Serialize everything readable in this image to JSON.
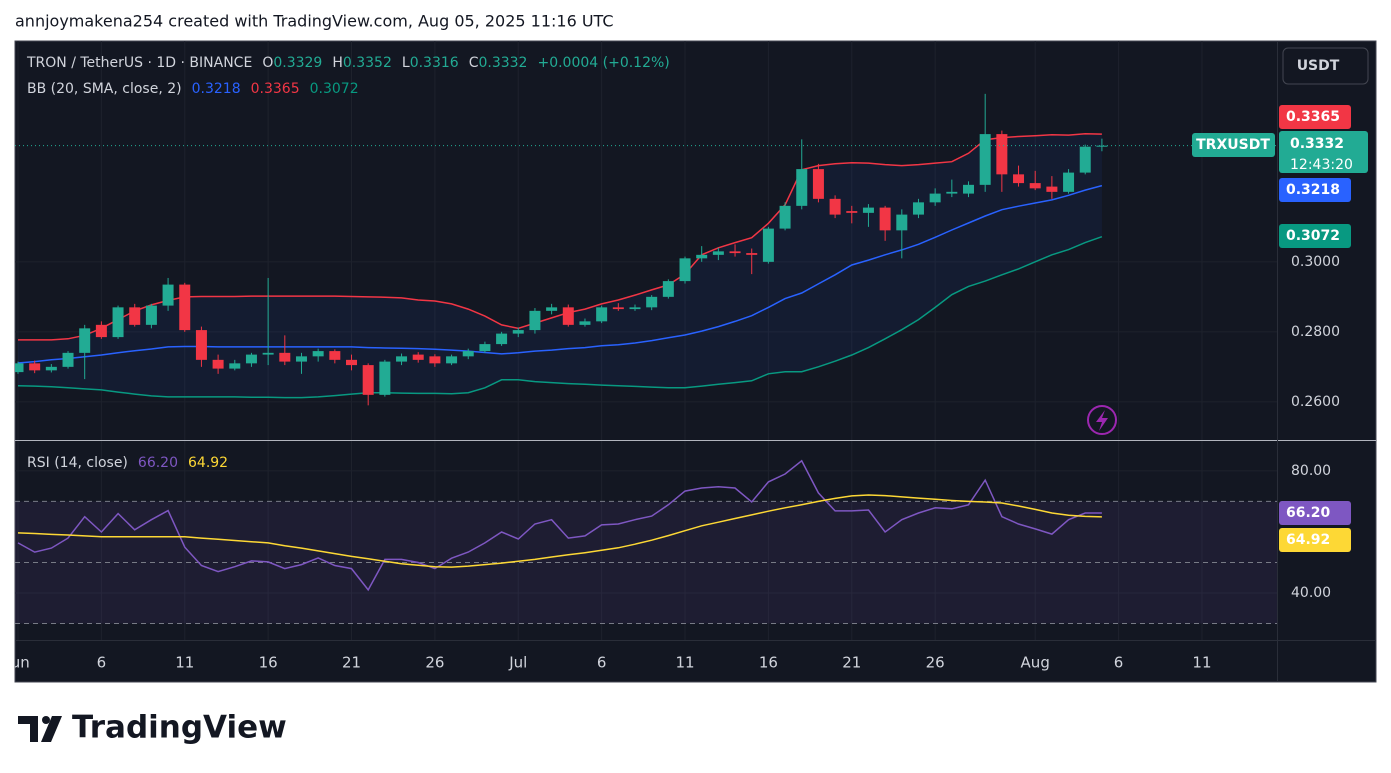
{
  "page": {
    "header": "annjoymakena254 created with TradingView.com, Aug 05, 2025 11:16 UTC",
    "brand": "TradingView"
  },
  "chart_data": [
    {
      "type": "candlestick",
      "title": "TRON / TetherUS · 1D · BINANCE",
      "ohlc_legend": [
        {
          "key": "O",
          "text": "0.3329"
        },
        {
          "key": "H",
          "text": "0.3352"
        },
        {
          "key": "L",
          "text": "0.3316"
        },
        {
          "key": "C",
          "text": "0.3332"
        }
      ],
      "change": "+0.0004 (+0.12%)",
      "symbol": "TRXUSDT",
      "currency": "USDT",
      "last_price_label": "0.3332",
      "countdown": "12:43:20",
      "up_color": "#22ab94",
      "down_color": "#f23645",
      "x": [
        "2025-06-01",
        "2025-06-02",
        "2025-06-03",
        "2025-06-04",
        "2025-06-05",
        "2025-06-06",
        "2025-06-07",
        "2025-06-08",
        "2025-06-09",
        "2025-06-10",
        "2025-06-11",
        "2025-06-12",
        "2025-06-13",
        "2025-06-14",
        "2025-06-15",
        "2025-06-16",
        "2025-06-17",
        "2025-06-18",
        "2025-06-19",
        "2025-06-20",
        "2025-06-21",
        "2025-06-22",
        "2025-06-23",
        "2025-06-24",
        "2025-06-25",
        "2025-06-26",
        "2025-06-27",
        "2025-06-28",
        "2025-06-29",
        "2025-06-30",
        "2025-07-01",
        "2025-07-02",
        "2025-07-03",
        "2025-07-04",
        "2025-07-05",
        "2025-07-06",
        "2025-07-07",
        "2025-07-08",
        "2025-07-09",
        "2025-07-10",
        "2025-07-11",
        "2025-07-12",
        "2025-07-13",
        "2025-07-14",
        "2025-07-15",
        "2025-07-16",
        "2025-07-17",
        "2025-07-18",
        "2025-07-19",
        "2025-07-20",
        "2025-07-21",
        "2025-07-22",
        "2025-07-23",
        "2025-07-24",
        "2025-07-25",
        "2025-07-26",
        "2025-07-27",
        "2025-07-28",
        "2025-07-29",
        "2025-07-30",
        "2025-07-31",
        "2025-08-01",
        "2025-08-02",
        "2025-08-03",
        "2025-08-04",
        "2025-08-05"
      ],
      "open": [
        0.2685,
        0.271,
        0.269,
        0.27,
        0.274,
        0.282,
        0.2785,
        0.287,
        0.282,
        0.2875,
        0.2935,
        0.2805,
        0.272,
        0.2695,
        0.271,
        0.2735,
        0.274,
        0.2715,
        0.273,
        0.2745,
        0.272,
        0.2705,
        0.262,
        0.2715,
        0.2735,
        0.273,
        0.271,
        0.273,
        0.2745,
        0.2765,
        0.2795,
        0.2805,
        0.286,
        0.287,
        0.282,
        0.283,
        0.287,
        0.2865,
        0.287,
        0.29,
        0.2945,
        0.301,
        0.302,
        0.303,
        0.3025,
        0.3,
        0.3095,
        0.316,
        0.3265,
        0.318,
        0.3145,
        0.314,
        0.3155,
        0.309,
        0.3135,
        0.317,
        0.3195,
        0.3195,
        0.322,
        0.3365,
        0.325,
        0.3225,
        0.3215,
        0.32,
        0.3255,
        0.3329
      ],
      "high": [
        0.2715,
        0.2718,
        0.2708,
        0.2745,
        0.282,
        0.283,
        0.2875,
        0.288,
        0.288,
        0.2954,
        0.294,
        0.2815,
        0.2735,
        0.272,
        0.274,
        0.2954,
        0.279,
        0.274,
        0.2752,
        0.275,
        0.2735,
        0.271,
        0.272,
        0.2738,
        0.2742,
        0.2736,
        0.2735,
        0.2752,
        0.2772,
        0.28,
        0.2812,
        0.2868,
        0.288,
        0.2878,
        0.2838,
        0.2875,
        0.2882,
        0.2878,
        0.2905,
        0.295,
        0.3015,
        0.3045,
        0.304,
        0.305,
        0.3038,
        0.31,
        0.317,
        0.335,
        0.328,
        0.319,
        0.316,
        0.3165,
        0.316,
        0.315,
        0.318,
        0.321,
        0.3235,
        0.323,
        0.348,
        0.3375,
        0.3275,
        0.326,
        0.3245,
        0.3265,
        0.3335,
        0.3352
      ],
      "low": [
        0.268,
        0.2682,
        0.2684,
        0.2695,
        0.2665,
        0.278,
        0.278,
        0.2815,
        0.281,
        0.286,
        0.28,
        0.27,
        0.268,
        0.269,
        0.27,
        0.2705,
        0.2705,
        0.268,
        0.2715,
        0.271,
        0.269,
        0.259,
        0.2615,
        0.2705,
        0.2712,
        0.27,
        0.2705,
        0.2722,
        0.274,
        0.276,
        0.2785,
        0.2795,
        0.285,
        0.2815,
        0.2815,
        0.2825,
        0.286,
        0.286,
        0.2862,
        0.2895,
        0.2938,
        0.3,
        0.3005,
        0.3015,
        0.2965,
        0.2995,
        0.309,
        0.315,
        0.317,
        0.3125,
        0.311,
        0.31,
        0.306,
        0.301,
        0.3125,
        0.316,
        0.3185,
        0.3185,
        0.32,
        0.32,
        0.3215,
        0.3205,
        0.318,
        0.3195,
        0.325,
        0.3316
      ],
      "close": [
        0.271,
        0.269,
        0.27,
        0.274,
        0.281,
        0.2785,
        0.287,
        0.282,
        0.2875,
        0.2935,
        0.2805,
        0.272,
        0.2695,
        0.271,
        0.2735,
        0.274,
        0.2715,
        0.273,
        0.2745,
        0.272,
        0.2705,
        0.262,
        0.2715,
        0.273,
        0.272,
        0.271,
        0.273,
        0.2745,
        0.2765,
        0.2795,
        0.2805,
        0.286,
        0.287,
        0.282,
        0.283,
        0.287,
        0.2865,
        0.287,
        0.29,
        0.2945,
        0.301,
        0.302,
        0.303,
        0.3025,
        0.302,
        0.3095,
        0.316,
        0.3265,
        0.318,
        0.3135,
        0.314,
        0.3155,
        0.309,
        0.3135,
        0.317,
        0.3195,
        0.32,
        0.322,
        0.3365,
        0.325,
        0.3225,
        0.321,
        0.32,
        0.3255,
        0.3329,
        0.3332
      ],
      "indicator": {
        "name": "BB (20, SMA, close, 2)",
        "fill": "#2962ff",
        "series": [
          {
            "color": "#2962ff",
            "last_label": "0.3218",
            "values": [
              0.2711,
              0.2715,
              0.272,
              0.2724,
              0.2729,
              0.2734,
              0.274,
              0.2746,
              0.2751,
              0.2757,
              0.2758,
              0.2758,
              0.2757,
              0.2757,
              0.2757,
              0.2757,
              0.2757,
              0.2757,
              0.2757,
              0.2757,
              0.2757,
              0.2755,
              0.2754,
              0.2753,
              0.2752,
              0.275,
              0.2748,
              0.2745,
              0.2741,
              0.2737,
              0.274,
              0.2745,
              0.2748,
              0.2752,
              0.2755,
              0.276,
              0.2763,
              0.2768,
              0.2775,
              0.2783,
              0.2791,
              0.2802,
              0.2815,
              0.283,
              0.2846,
              0.287,
              0.2895,
              0.2911,
              0.2937,
              0.2963,
              0.2991,
              0.3005,
              0.302,
              0.3034,
              0.305,
              0.307,
              0.3091,
              0.3111,
              0.3131,
              0.3149,
              0.3159,
              0.3168,
              0.3177,
              0.319,
              0.3205,
              0.3218
            ]
          },
          {
            "color": "#f23645",
            "last_label": "0.3365",
            "values": [
              0.2777,
              0.2777,
              0.2777,
              0.278,
              0.279,
              0.281,
              0.2835,
              0.286,
              0.2877,
              0.289,
              0.29,
              0.2901,
              0.2901,
              0.2901,
              0.2902,
              0.2902,
              0.2902,
              0.2902,
              0.2902,
              0.2902,
              0.2901,
              0.29,
              0.2899,
              0.2897,
              0.2891,
              0.2888,
              0.288,
              0.2865,
              0.2845,
              0.282,
              0.281,
              0.2825,
              0.284,
              0.2855,
              0.2865,
              0.288,
              0.2891,
              0.2905,
              0.292,
              0.2934,
              0.2965,
              0.302,
              0.304,
              0.3055,
              0.3069,
              0.311,
              0.3163,
              0.3263,
              0.3275,
              0.328,
              0.3283,
              0.3282,
              0.3278,
              0.3275,
              0.3278,
              0.3282,
              0.3286,
              0.331,
              0.3349,
              0.3355,
              0.3358,
              0.336,
              0.3363,
              0.3362,
              0.3366,
              0.3365
            ]
          },
          {
            "color": "#089981",
            "last_label": "0.3072",
            "values": [
              0.2646,
              0.2645,
              0.2643,
              0.264,
              0.2637,
              0.2634,
              0.2628,
              0.2622,
              0.2617,
              0.2614,
              0.2614,
              0.2614,
              0.2614,
              0.2614,
              0.2613,
              0.2613,
              0.2612,
              0.2612,
              0.2614,
              0.2618,
              0.2622,
              0.2626,
              0.2626,
              0.2625,
              0.2624,
              0.2624,
              0.2623,
              0.2626,
              0.264,
              0.2663,
              0.2663,
              0.2658,
              0.2655,
              0.2652,
              0.265,
              0.2648,
              0.2646,
              0.2644,
              0.2642,
              0.264,
              0.264,
              0.2645,
              0.265,
              0.2655,
              0.266,
              0.268,
              0.2686,
              0.2686,
              0.27,
              0.2716,
              0.2734,
              0.2755,
              0.278,
              0.2806,
              0.2835,
              0.287,
              0.2906,
              0.293,
              0.2945,
              0.2963,
              0.298,
              0.3,
              0.302,
              0.3035,
              0.3055,
              0.3072
            ]
          }
        ]
      },
      "xlim": [
        "2025-05-31T19:41Z",
        "2025-08-15T12:00Z"
      ],
      "xticks": [
        {
          "value": "2025-06-01",
          "label": "Jun"
        },
        {
          "value": "2025-06-06",
          "label": "6"
        },
        {
          "value": "2025-06-11",
          "label": "11"
        },
        {
          "value": "2025-06-16",
          "label": "16"
        },
        {
          "value": "2025-06-21",
          "label": "21"
        },
        {
          "value": "2025-06-26",
          "label": "26"
        },
        {
          "value": "2025-07-01",
          "label": "Jul"
        },
        {
          "value": "2025-07-06",
          "label": "6"
        },
        {
          "value": "2025-07-11",
          "label": "11"
        },
        {
          "value": "2025-07-16",
          "label": "16"
        },
        {
          "value": "2025-07-21",
          "label": "21"
        },
        {
          "value": "2025-07-26",
          "label": "26"
        },
        {
          "value": "2025-08-01",
          "label": "Aug"
        },
        {
          "value": "2025-08-06",
          "label": "6"
        },
        {
          "value": "2025-08-11",
          "label": "11"
        }
      ],
      "ylim": [
        0.2491,
        0.3631
      ],
      "yticks": [
        {
          "value": 0.26,
          "label": "0.2600"
        },
        {
          "value": 0.28,
          "label": "0.2800"
        },
        {
          "value": 0.3,
          "label": "0.3000"
        }
      ],
      "grid": true
    },
    {
      "type": "line",
      "title": "RSI (14, close)",
      "series": [
        {
          "color": "#7e57c2",
          "last_label": "66.20",
          "values": [
            56.4,
            53.4,
            54.7,
            58,
            65,
            60,
            66,
            60.7,
            64,
            67,
            55,
            49,
            47,
            48.6,
            50.5,
            50.2,
            48,
            49.3,
            51.5,
            49,
            48,
            41,
            51,
            51,
            50,
            48,
            51.4,
            53.4,
            56.4,
            60,
            57.7,
            62.6,
            64,
            58,
            58.7,
            62.3,
            62.6,
            64,
            65.2,
            68.9,
            73.4,
            74.4,
            74.8,
            74.4,
            69.8,
            76.4,
            79,
            83.3,
            72.8,
            66.9,
            66.9,
            67.2,
            60,
            64,
            66.2,
            67.9,
            67.6,
            68.9,
            77,
            65,
            62.6,
            61,
            59.3,
            64,
            66.2,
            66.2
          ]
        },
        {
          "color": "#fdd835",
          "last_label": "64.92",
          "values": [
            59.7,
            59.5,
            59.2,
            59,
            58.7,
            58.4,
            58.4,
            58.4,
            58.4,
            58.4,
            58.4,
            58,
            57.6,
            57.2,
            56.8,
            56.4,
            55.5,
            54.7,
            53.8,
            52.9,
            52,
            51.2,
            50.4,
            49.6,
            49.1,
            48.6,
            48.5,
            48.8,
            49.3,
            49.8,
            50.4,
            51,
            51.8,
            52.5,
            53.2,
            54,
            54.8,
            56,
            57.3,
            58.8,
            60.4,
            62,
            63.2,
            64.4,
            65.6,
            66.8,
            67.9,
            68.9,
            70,
            71,
            71.8,
            72.1,
            71.9,
            71.5,
            71.1,
            70.7,
            70.3,
            70,
            69.8,
            69.5,
            68.5,
            67.4,
            66.2,
            65.5,
            65.1,
            64.92
          ]
        }
      ],
      "levels": [
        70,
        50,
        30
      ],
      "band_color": "#7e57c2",
      "ylim": [
        24.6,
        89.8
      ],
      "yticks": [
        {
          "value": 40,
          "label": "40.00"
        },
        {
          "value": 80,
          "label": "80.00"
        }
      ]
    }
  ]
}
